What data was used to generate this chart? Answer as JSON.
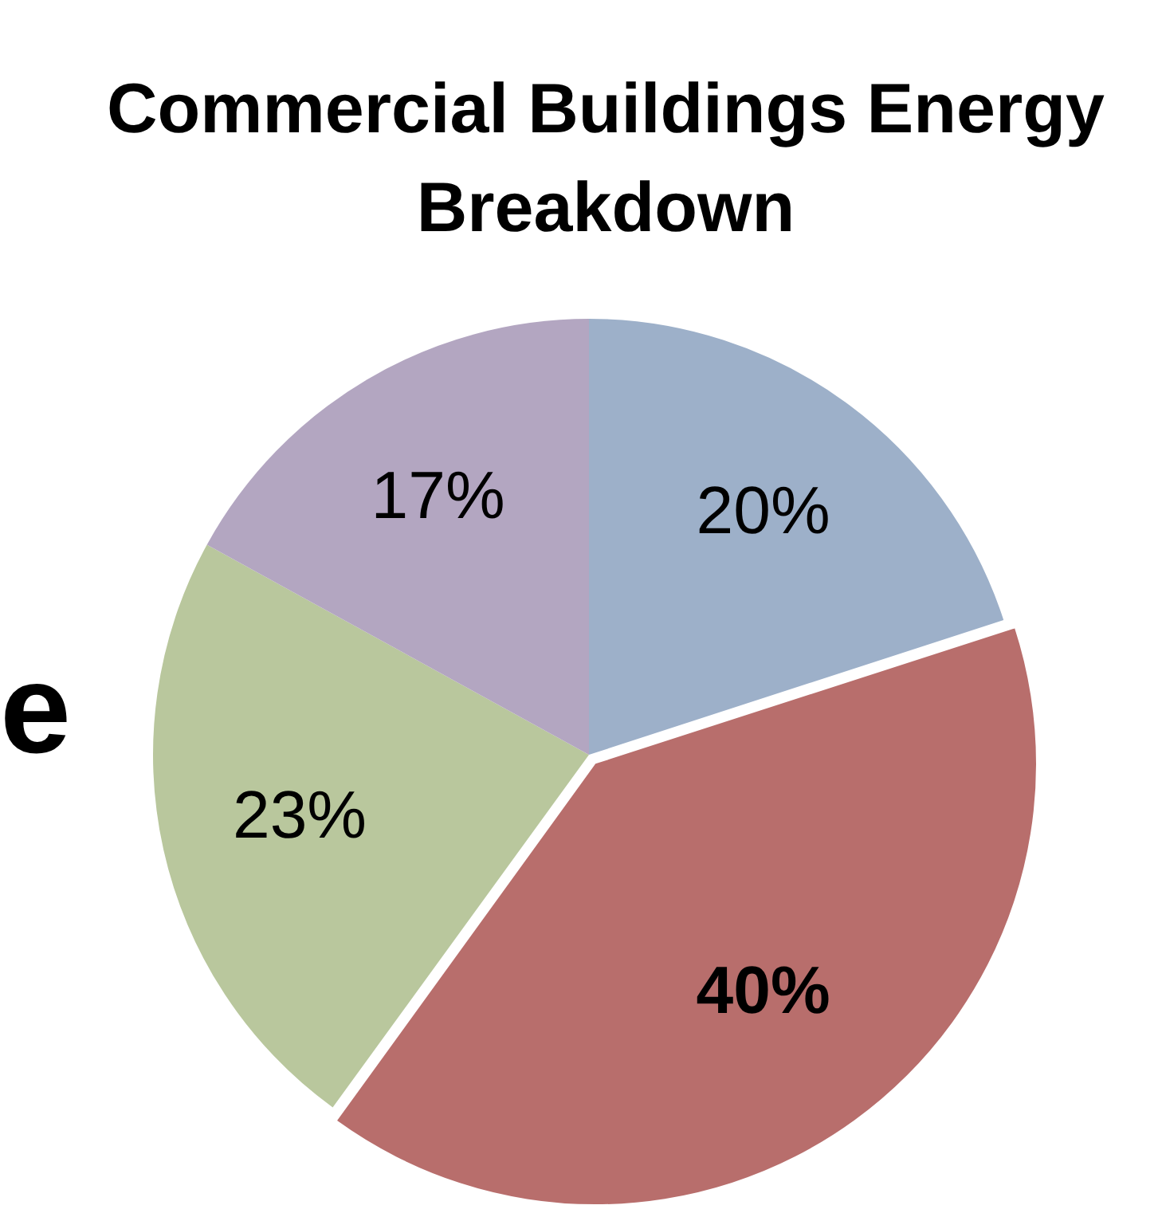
{
  "chart_data": {
    "type": "pie",
    "title": "Commercial Buildings Energy Breakdown",
    "categories": [
      null,
      null,
      null,
      null
    ],
    "values": [
      20,
      40,
      23,
      17
    ],
    "colors": [
      "#9db0c9",
      "#b86e6c",
      "#b9c79d",
      "#b3a6c1"
    ],
    "value_labels": [
      "20%",
      "40%",
      "23%",
      "17%"
    ],
    "annotations": [
      "e"
    ],
    "legend": false
  }
}
